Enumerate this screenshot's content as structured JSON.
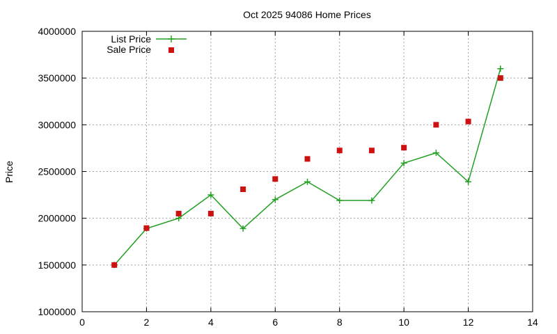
{
  "chart_data": {
    "type": "line",
    "title": "Oct 2025 94086 Home Prices",
    "xlabel": "",
    "ylabel": "Price",
    "xlim": [
      0,
      14
    ],
    "ylim": [
      1000000,
      4000000
    ],
    "xticks": [
      0,
      2,
      4,
      6,
      8,
      10,
      12,
      14
    ],
    "yticks": [
      1000000,
      1500000,
      2000000,
      2500000,
      3000000,
      3500000,
      4000000
    ],
    "grid": true,
    "legend_position": "top-left",
    "series": [
      {
        "name": "List Price",
        "style": "line-with-plus-markers",
        "color": "#22a022",
        "x": [
          1,
          2,
          3,
          4,
          5,
          6,
          7,
          8,
          9,
          10,
          11,
          12,
          13
        ],
        "y": [
          1500000,
          1890000,
          2000000,
          2250000,
          1890000,
          2200000,
          2390000,
          2190000,
          2190000,
          2590000,
          2700000,
          2390000,
          3600000
        ]
      },
      {
        "name": "Sale Price",
        "style": "square-markers",
        "color": "#cc1111",
        "x": [
          1,
          2,
          3,
          4,
          5,
          6,
          7,
          8,
          9,
          10,
          11,
          12,
          13
        ],
        "y": [
          1500000,
          1895000,
          2050000,
          2050000,
          2310000,
          2420000,
          2635000,
          2725000,
          2725000,
          2755000,
          3000000,
          3035000,
          3500000
        ]
      }
    ]
  }
}
